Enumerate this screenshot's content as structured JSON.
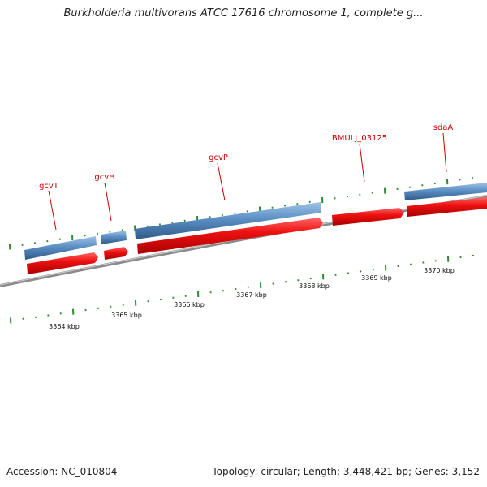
{
  "title": "Burkholderia multivorans ATCC 17616 chromosome 1, complete g...",
  "footer": {
    "accession": "Accession: NC_010804",
    "summary": "Topology: circular; Length: 3,448,421 bp; Genes: 3,152"
  },
  "colors": {
    "gene_blue": "#5b8fc4",
    "cds_red": "#ee1111",
    "backbone": "#888888",
    "tick": "#2f8a2f",
    "label_red": "#cc0000"
  },
  "genes": [
    {
      "name": "gcvT"
    },
    {
      "name": "gcvH"
    },
    {
      "name": "gcvP"
    },
    {
      "name": "BMULJ_03125"
    },
    {
      "name": "sdaA"
    }
  ],
  "scale_labels": [
    "3364 kbp",
    "3365 kbp",
    "3366 kbp",
    "3367 kbp",
    "3368 kbp",
    "3369 kbp",
    "3370 kbp"
  ]
}
